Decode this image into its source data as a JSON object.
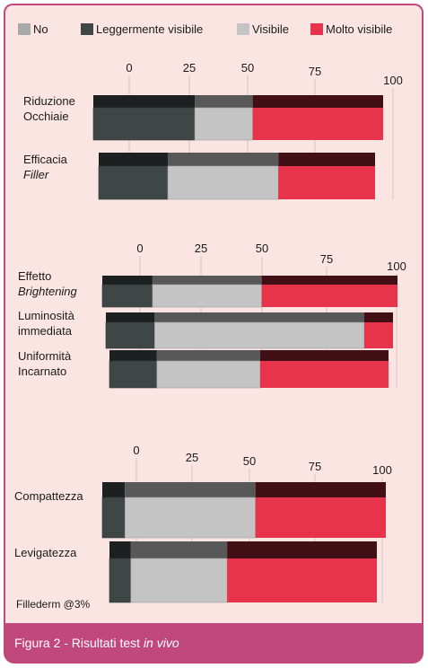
{
  "legend": [
    {
      "name": "No",
      "color": "#a9a9a9"
    },
    {
      "name": "Leggermente visibile",
      "color": "#3e4746"
    },
    {
      "name": "Visibile",
      "color": "#c4c4c4"
    },
    {
      "name": "Molto visibile",
      "color": "#e8344a"
    }
  ],
  "chart_data": [
    {
      "type": "bar",
      "orientation": "horizontal-stacked",
      "xlim": [
        0,
        100
      ],
      "ticks": [
        "0",
        "25",
        "50",
        "75",
        "100"
      ],
      "categories": [
        [
          "Riduzione",
          "Occhiaie"
        ],
        [
          "Efficacia",
          "Filler"
        ]
      ],
      "category_italic_line": [
        null,
        1
      ],
      "series": [
        {
          "name": "No",
          "values": [
            0,
            0
          ]
        },
        {
          "name": "Leggermente visibile",
          "values": [
            35,
            25
          ]
        },
        {
          "name": "Visibile",
          "values": [
            20,
            40
          ]
        },
        {
          "name": "Molto visibile",
          "values": [
            45,
            35
          ]
        }
      ]
    },
    {
      "type": "bar",
      "orientation": "horizontal-stacked",
      "xlim": [
        0,
        100
      ],
      "ticks": [
        "0",
        "25",
        "50",
        "75",
        "100"
      ],
      "categories": [
        [
          "Effetto",
          "Brightening"
        ],
        [
          "Luminosità",
          "immediata"
        ],
        [
          "Uniformità",
          "Incarnato"
        ]
      ],
      "category_italic_line": [
        1,
        null,
        null
      ],
      "series": [
        {
          "name": "No",
          "values": [
            0,
            0,
            0
          ]
        },
        {
          "name": "Leggermente visibile",
          "values": [
            17,
            17,
            17
          ]
        },
        {
          "name": "Visibile",
          "values": [
            37,
            73,
            37
          ]
        },
        {
          "name": "Molto visibile",
          "values": [
            46,
            10,
            46
          ]
        }
      ]
    },
    {
      "type": "bar",
      "orientation": "horizontal-stacked",
      "xlim": [
        0,
        100
      ],
      "ticks": [
        "0",
        "25",
        "50",
        "75",
        "100"
      ],
      "categories": [
        [
          "Compattezza"
        ],
        [
          "Levigatezza"
        ]
      ],
      "category_italic_line": [
        null,
        null
      ],
      "series": [
        {
          "name": "No",
          "values": [
            0,
            0
          ]
        },
        {
          "name": "Leggermente visibile",
          "values": [
            8,
            8
          ]
        },
        {
          "name": "Visibile",
          "values": [
            46,
            36
          ]
        },
        {
          "name": "Molto visibile",
          "values": [
            46,
            56
          ]
        }
      ]
    }
  ],
  "note": "Fillederm @3%",
  "caption": {
    "prefix": "Figura 2 - Risultati test ",
    "italic": "in vivo"
  },
  "colors": {
    "panel": "#fbe5e3",
    "accent": "#c0487c",
    "bar_top_dark": "#2b2f2f",
    "bar_top_red": "#3a1a1c"
  }
}
